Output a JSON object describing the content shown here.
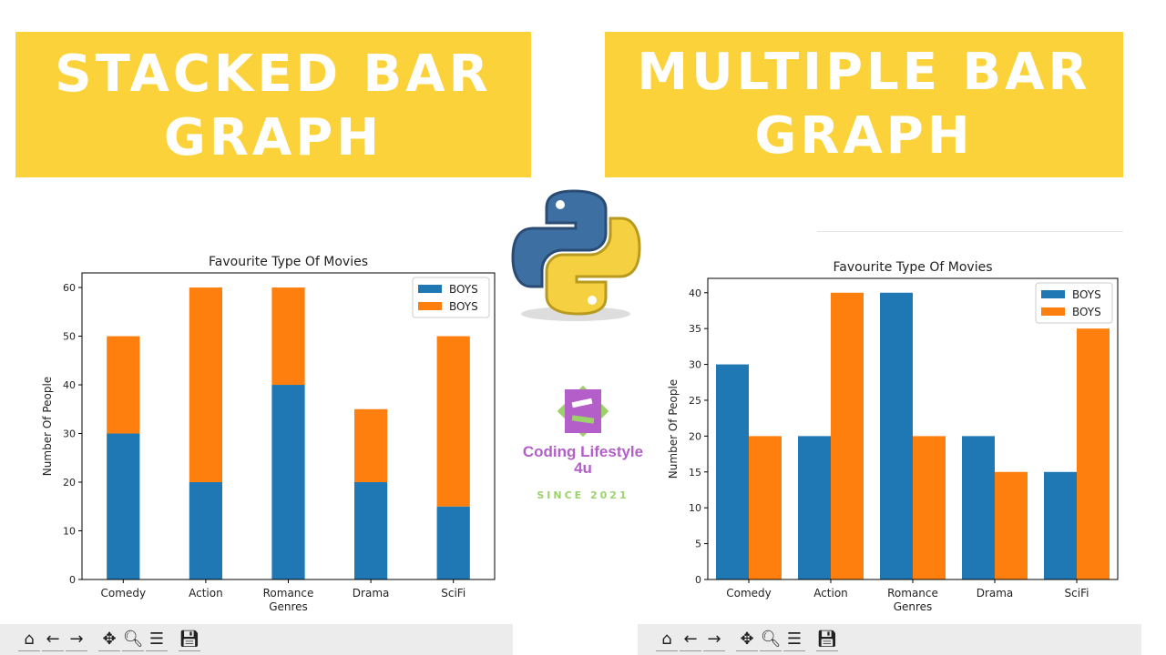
{
  "banners": {
    "left": "STACKED BAR GRAPH",
    "right": "MULTIPLE BAR GRAPH"
  },
  "brand": {
    "name": "Coding Lifestyle",
    "suffix": "4u",
    "since": "SINCE 2021",
    "colors": {
      "purple": "#b45fc9",
      "green": "#9bd36a"
    }
  },
  "toolbar": {
    "icons": [
      "home-icon",
      "back-icon",
      "forward-icon",
      "pan-icon",
      "zoom-icon",
      "configure-icon",
      "save-icon"
    ]
  },
  "colors": {
    "blue": "#1f77b4",
    "orange": "#ff7f0e",
    "banner": "#fcd23a"
  },
  "chart_data": [
    {
      "type": "bar",
      "stacked": true,
      "title": "Favourite Type Of Movies",
      "xlabel": "Genres",
      "ylabel": "Number Of People",
      "categories": [
        "Comedy",
        "Action",
        "Romance",
        "Drama",
        "SciFi"
      ],
      "series": [
        {
          "name": "BOYS",
          "values": [
            30,
            20,
            40,
            20,
            15
          ]
        },
        {
          "name": "BOYS",
          "values": [
            20,
            40,
            20,
            15,
            35
          ]
        }
      ],
      "ylim": [
        0,
        63
      ],
      "yticks": [
        0,
        10,
        20,
        30,
        40,
        50,
        60
      ],
      "legend": "top-right",
      "grid": false
    },
    {
      "type": "bar",
      "stacked": false,
      "title": "Favourite Type Of Movies",
      "xlabel": "Genres",
      "ylabel": "Number Of People",
      "categories": [
        "Comedy",
        "Action",
        "Romance",
        "Drama",
        "SciFi"
      ],
      "series": [
        {
          "name": "BOYS",
          "values": [
            30,
            20,
            40,
            20,
            15
          ]
        },
        {
          "name": "BOYS",
          "values": [
            20,
            40,
            20,
            15,
            35
          ]
        }
      ],
      "ylim": [
        0,
        42
      ],
      "yticks": [
        0,
        5,
        10,
        15,
        20,
        25,
        30,
        35,
        40
      ],
      "legend": "top-right",
      "grid": false
    }
  ]
}
